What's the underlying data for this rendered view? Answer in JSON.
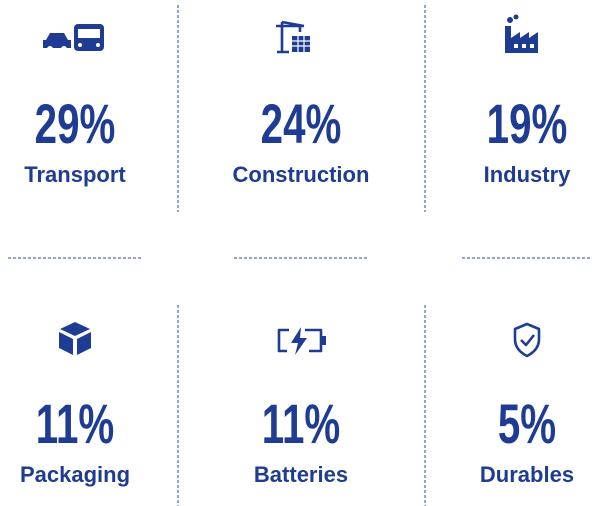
{
  "items": [
    {
      "value": "29%",
      "label": "Transport"
    },
    {
      "value": "24%",
      "label": "Construction"
    },
    {
      "value": "19%",
      "label": "Industry"
    },
    {
      "value": "11%",
      "label": "Packaging"
    },
    {
      "value": "11%",
      "label": "Batteries"
    },
    {
      "value": "5%",
      "label": "Durables"
    }
  ]
}
